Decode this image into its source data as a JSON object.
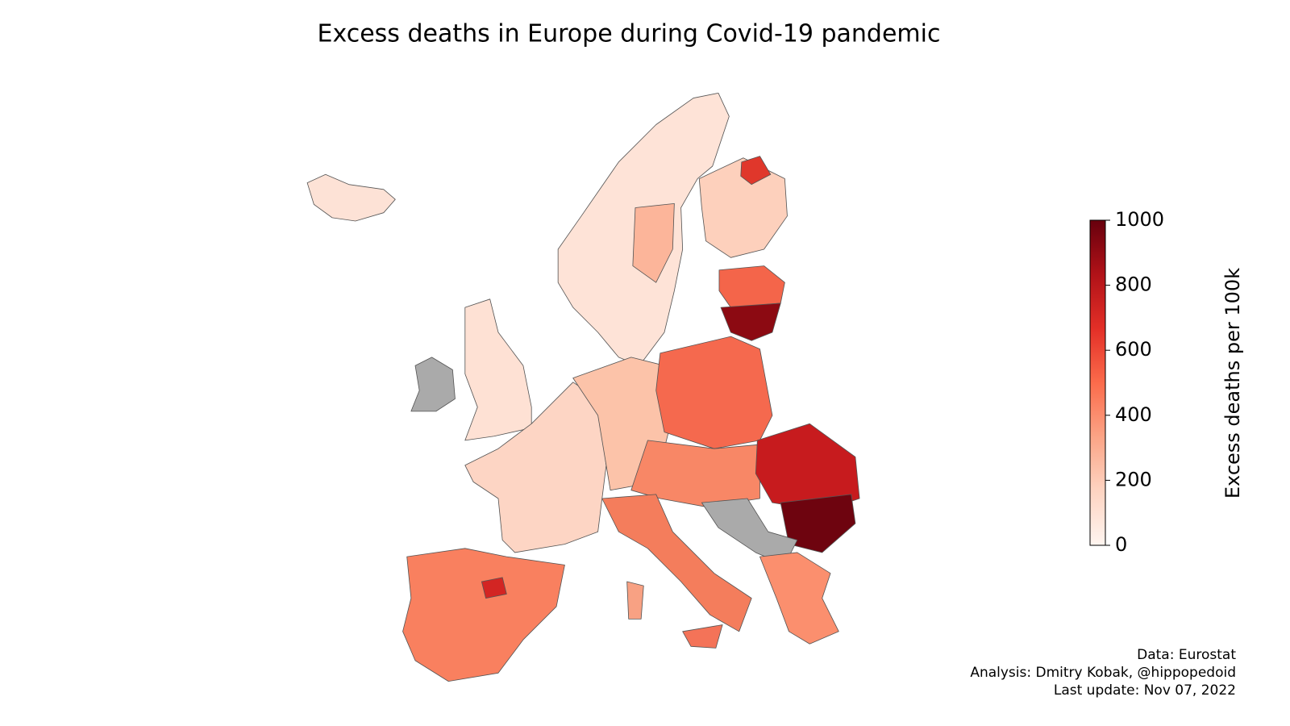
{
  "title": "Excess deaths in Europe during Covid-19 pandemic",
  "colorbar": {
    "label": "Excess deaths per 100k",
    "lim": [
      0,
      1000
    ],
    "ticks": [
      0,
      200,
      400,
      600,
      800,
      1000
    ],
    "colors": [
      "#fff5f0",
      "#fdd4c2",
      "#fca486",
      "#fb6b4b",
      "#e32f27",
      "#b11218",
      "#67000d"
    ]
  },
  "credits": [
    "Data: Eurostat",
    "Analysis: Dmitry Kobak, @hippopedoid",
    "Last update: Nov 07, 2022"
  ]
}
